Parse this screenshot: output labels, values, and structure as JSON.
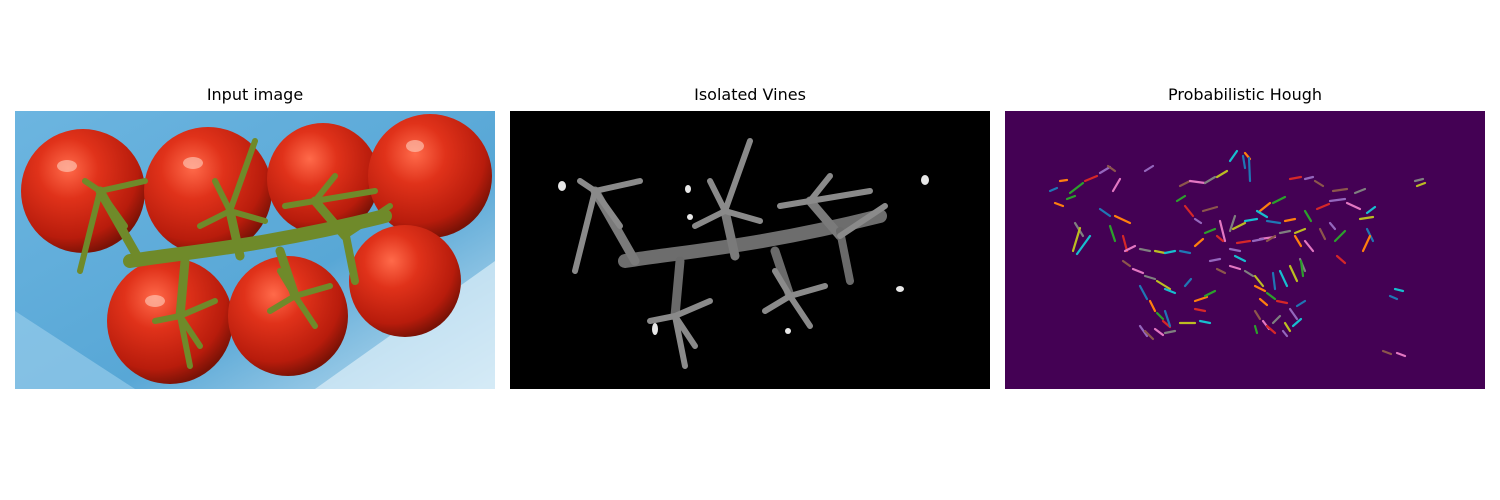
{
  "panels": [
    {
      "title": "Input image"
    },
    {
      "title": "Isolated Vines"
    },
    {
      "title": "Probabilistic Hough"
    }
  ],
  "colors": {
    "background": "#ffffff",
    "input_background": "#5aa8d6",
    "tomato": "#d42a14",
    "vine": "#6f8a2a",
    "mask_background": "#000000",
    "hough_background": "#440154",
    "hough_line_palette": [
      "#1f77b4",
      "#ff7f0e",
      "#2ca02c",
      "#d62728",
      "#9467bd",
      "#8c564b",
      "#e377c2",
      "#7f7f7f",
      "#bcbd22",
      "#17becf"
    ]
  }
}
